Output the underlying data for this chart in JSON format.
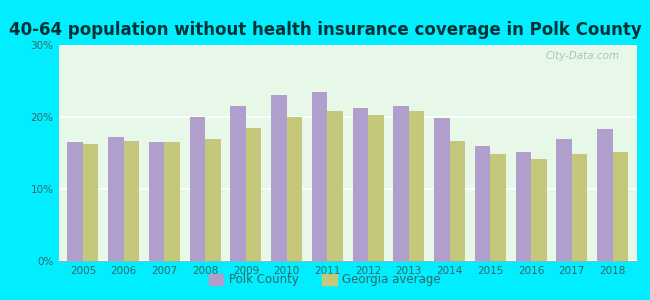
{
  "title": "40-64 population without health insurance coverage in Polk County",
  "years": [
    2005,
    2006,
    2007,
    2008,
    2009,
    2010,
    2011,
    2012,
    2013,
    2014,
    2015,
    2016,
    2017,
    2018
  ],
  "polk_county": [
    16.5,
    17.2,
    16.5,
    20.0,
    21.5,
    23.0,
    23.5,
    21.2,
    21.5,
    19.8,
    16.0,
    15.2,
    17.0,
    18.3
  ],
  "georgia_avg": [
    16.2,
    16.7,
    16.5,
    17.0,
    18.5,
    20.0,
    20.8,
    20.3,
    20.8,
    16.7,
    14.8,
    14.2,
    14.8,
    15.2
  ],
  "polk_color": "#b09fcc",
  "georgia_color": "#c5c87a",
  "background_outer": "#00eeff",
  "background_plot_top": "#d8f5ee",
  "background_plot_bottom": "#e8f8e8",
  "ylim": [
    0,
    30
  ],
  "yticks": [
    0,
    10,
    20,
    30
  ],
  "ytick_labels": [
    "0%",
    "10%",
    "20%",
    "30%"
  ],
  "watermark": "City-Data.com",
  "legend_polk": "Polk County",
  "legend_georgia": "Georgia average",
  "title_fontsize": 12,
  "title_color": "#003333",
  "tick_color": "#336666",
  "bar_width": 0.38
}
